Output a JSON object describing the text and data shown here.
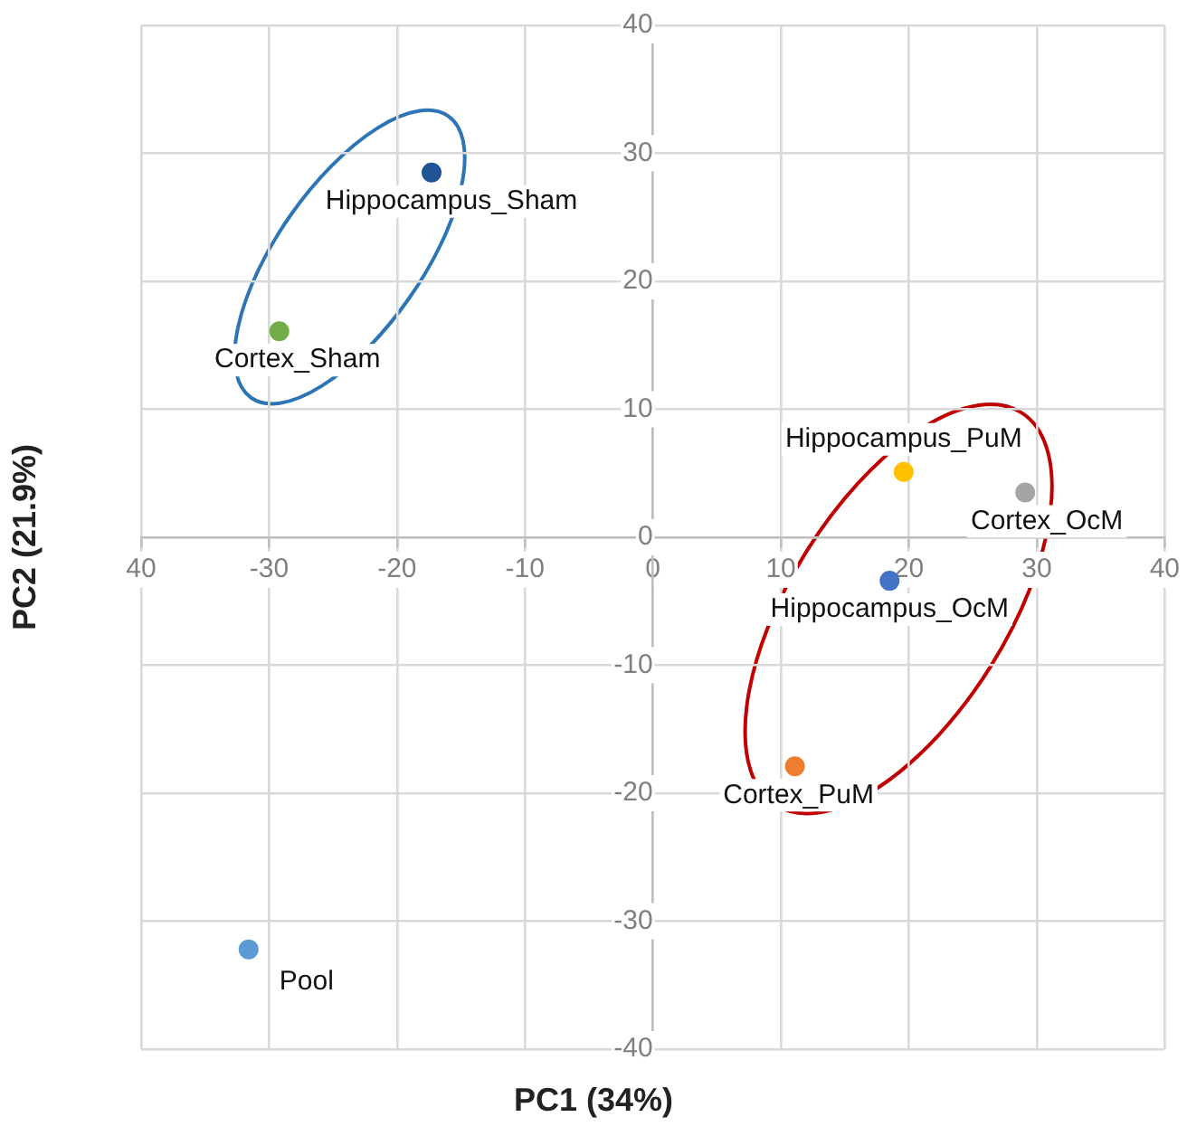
{
  "chart_data": {
    "type": "scatter",
    "xlabel": "PC1 (34%)",
    "ylabel": "PC2 (21.9%)",
    "xlim": [
      -40,
      40
    ],
    "xticks": [
      {
        "value": -40,
        "label": "40"
      },
      -30,
      -20,
      -10,
      0,
      10,
      20,
      30,
      40
    ],
    "ylim": [
      -40,
      40
    ],
    "yticks": [
      -40,
      -30,
      -20,
      -10,
      0,
      10,
      20,
      30,
      40
    ],
    "grid": true,
    "legend": false,
    "marker": "circle",
    "series": [
      {
        "name": "Hippocampus_Sham",
        "color": "#1f5597",
        "x": [
          -17.3
        ],
        "values": [
          28.5
        ]
      },
      {
        "name": "Cortex_Sham",
        "color": "#70ad47",
        "x": [
          -29.2
        ],
        "values": [
          16.1
        ]
      },
      {
        "name": "Hippocampus_PuM",
        "color": "#ffc000",
        "x": [
          19.6
        ],
        "values": [
          5.1
        ]
      },
      {
        "name": "Cortex_OcM",
        "color": "#a5a5a5",
        "x": [
          29.1
        ],
        "values": [
          3.5
        ]
      },
      {
        "name": "Hippocampus_OcM",
        "color": "#4472c4",
        "x": [
          18.5
        ],
        "values": [
          -3.4
        ]
      },
      {
        "name": "Cortex_PuM",
        "color": "#ed7d31",
        "x": [
          11.1
        ],
        "values": [
          -17.9
        ]
      },
      {
        "name": "Pool",
        "color": "#5b9bd5",
        "x": [
          -31.6
        ],
        "values": [
          -32.2
        ]
      }
    ]
  }
}
